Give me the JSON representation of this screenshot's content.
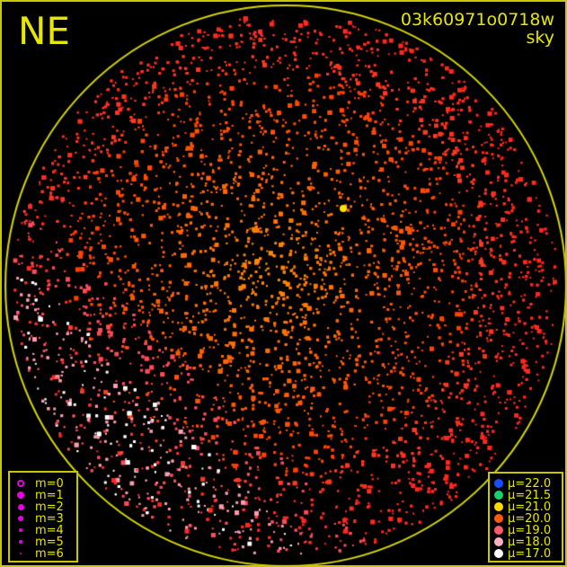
{
  "direction_label": "NE",
  "image_id_label": "03k60971o0718w",
  "image_type_label": "sky",
  "colors": {
    "frame": "#c8c800",
    "text": "#e6e600",
    "background": "#000000"
  },
  "magnitude_legend": [
    {
      "label": "m=0",
      "style": "ring"
    },
    {
      "label": "m=1",
      "style": "filled"
    },
    {
      "label": "m=2",
      "style": "filled"
    },
    {
      "label": "m=3",
      "style": "filled"
    },
    {
      "label": "m=4",
      "style": "filled"
    },
    {
      "label": "m=5",
      "style": "filled"
    },
    {
      "label": "m=6",
      "style": "filled"
    }
  ],
  "magnitude_color": "#e600e6",
  "brightness_legend": [
    {
      "label": "μ=22.0",
      "color": "#1a4dff"
    },
    {
      "label": "μ=21.5",
      "color": "#19d26a"
    },
    {
      "label": "μ=21.0",
      "color": "#ffd800"
    },
    {
      "label": "μ=20.0",
      "color": "#ff5a10"
    },
    {
      "label": "μ=19.0",
      "color": "#ff5a6a"
    },
    {
      "label": "μ=18.0",
      "color": "#ffb0c0"
    },
    {
      "label": "μ=17.0",
      "color": "#ffffff"
    }
  ]
}
